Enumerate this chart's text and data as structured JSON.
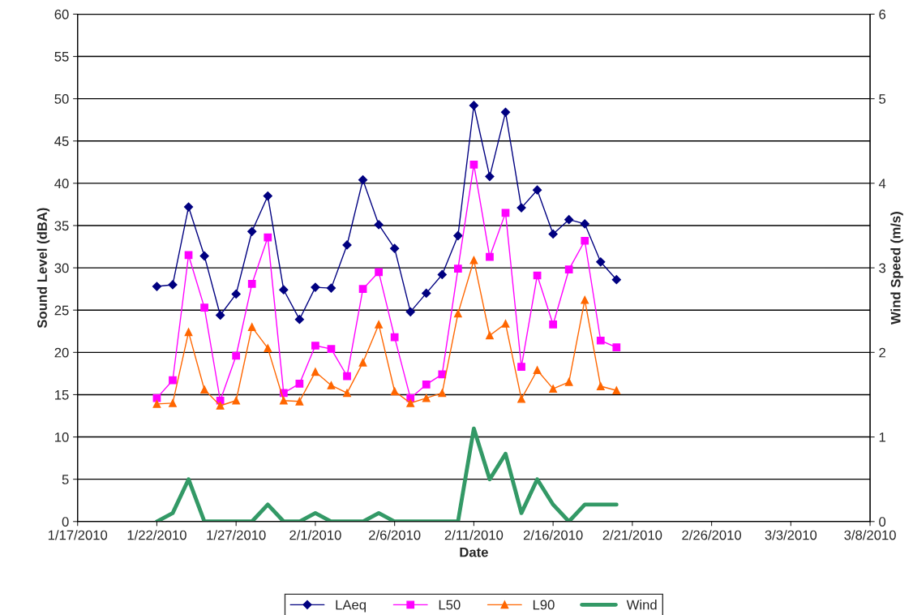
{
  "chart_data": {
    "type": "line",
    "xlabel": "Date",
    "ylabel": "Sound Level (dBA)",
    "y2label": "Wind Speed (m/s)",
    "x": [
      "2010-01-22",
      "2010-01-23",
      "2010-01-24",
      "2010-01-25",
      "2010-01-26",
      "2010-01-27",
      "2010-01-28",
      "2010-01-29",
      "2010-01-30",
      "2010-01-31",
      "2010-02-01",
      "2010-02-02",
      "2010-02-03",
      "2010-02-04",
      "2010-02-05",
      "2010-02-06",
      "2010-02-07",
      "2010-02-08",
      "2010-02-09",
      "2010-02-10",
      "2010-02-11",
      "2010-02-12",
      "2010-02-13",
      "2010-02-14",
      "2010-02-15",
      "2010-02-16",
      "2010-02-17",
      "2010-02-18",
      "2010-02-19",
      "2010-02-20"
    ],
    "series": [
      {
        "name": "LAeq",
        "color": "#000080",
        "marker": "diamond",
        "values": [
          27.8,
          28,
          37.2,
          31.4,
          24.4,
          26.9,
          34.3,
          38.5,
          27.4,
          23.9,
          27.7,
          27.6,
          32.7,
          40.4,
          35.1,
          32.3,
          24.8,
          27,
          29.2,
          33.8,
          49.2,
          40.8,
          48.4,
          37.1,
          39.2,
          34,
          35.7,
          35.2,
          30.7,
          28.6
        ]
      },
      {
        "name": "L50",
        "color": "#ff00ff",
        "marker": "square",
        "values": [
          14.6,
          16.7,
          31.5,
          25.3,
          14.3,
          19.6,
          28.1,
          33.6,
          15.2,
          16.3,
          20.8,
          20.4,
          17.2,
          27.5,
          29.5,
          21.8,
          14.6,
          16.2,
          17.4,
          29.9,
          42.2,
          31.3,
          36.5,
          18.3,
          29.1,
          23.3,
          29.8,
          33.2,
          21.4,
          20.6
        ]
      },
      {
        "name": "L90",
        "color": "#ff6600",
        "marker": "triangle",
        "values": [
          13.9,
          14,
          22.4,
          15.6,
          13.7,
          14.3,
          23,
          20.5,
          14.3,
          14.2,
          17.7,
          16.1,
          15.2,
          18.8,
          23.3,
          15.4,
          14,
          14.6,
          15.2,
          24.6,
          30.9,
          22,
          23.4,
          14.5,
          17.9,
          15.7,
          16.5,
          26.2,
          16,
          15.5
        ]
      },
      {
        "name": "Wind",
        "color": "#339966",
        "marker": "none",
        "axis": "y2",
        "values": [
          0,
          0.1,
          0.5,
          0,
          0,
          0,
          0,
          0.2,
          0,
          0,
          0.1,
          0,
          0,
          0,
          0.1,
          0,
          0,
          0,
          0,
          0,
          1.1,
          0.5,
          0.8,
          0.1,
          0.5,
          0.2,
          0,
          0.2,
          0.2,
          0.2
        ]
      }
    ],
    "xlim": [
      "2010-01-17",
      "2010-03-08"
    ],
    "xticks": [
      {
        "value": "2010-01-17",
        "label": "1/17/2010"
      },
      {
        "value": "2010-01-22",
        "label": "1/22/2010"
      },
      {
        "value": "2010-01-27",
        "label": "1/27/2010"
      },
      {
        "value": "2010-02-01",
        "label": "2/1/2010"
      },
      {
        "value": "2010-02-06",
        "label": "2/6/2010"
      },
      {
        "value": "2010-02-11",
        "label": "2/11/2010"
      },
      {
        "value": "2010-02-16",
        "label": "2/16/2010"
      },
      {
        "value": "2010-02-21",
        "label": "2/21/2010"
      },
      {
        "value": "2010-02-26",
        "label": "2/26/2010"
      },
      {
        "value": "2010-03-03",
        "label": "3/3/2010"
      },
      {
        "value": "2010-03-08",
        "label": "3/8/2010"
      }
    ],
    "ylim": [
      0,
      60
    ],
    "yticks": [
      0,
      5,
      10,
      15,
      20,
      25,
      30,
      35,
      40,
      45,
      50,
      55,
      60
    ],
    "y2lim": [
      0,
      6
    ],
    "y2ticks": [
      0,
      1,
      2,
      3,
      4,
      5,
      6
    ],
    "grid": "y",
    "legend": "bottom",
    "line_style": "solid"
  }
}
